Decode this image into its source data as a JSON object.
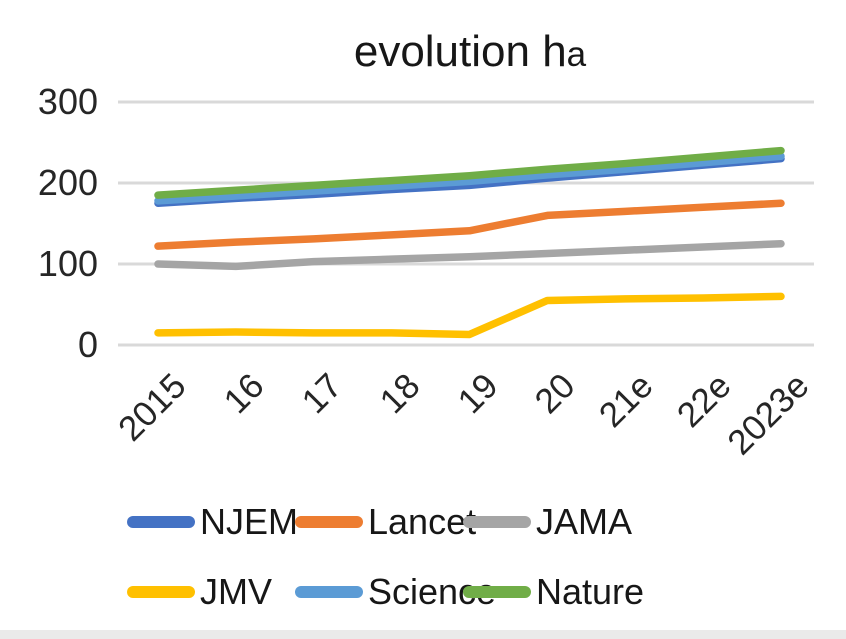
{
  "title": {
    "main": "evolution h",
    "suffix": "a",
    "full": "evolution ha"
  },
  "chart_data": {
    "type": "line",
    "title": "evolution ha",
    "categories": [
      "2015",
      "16",
      "17",
      "18",
      "19",
      "20",
      "21e",
      "22e",
      "2023e"
    ],
    "yticks": [
      "0",
      "100",
      "200",
      "300"
    ],
    "ytick_values": [
      0,
      100,
      200,
      300
    ],
    "ylim": [
      0,
      300
    ],
    "grid": true,
    "gridline_color": "#D9D9D9",
    "legend_position": "bottom",
    "legend_rows": 2,
    "series": [
      {
        "name": "NJEM",
        "color": "#4472C4",
        "values": [
          175,
          181,
          186,
          192,
          197,
          206,
          214,
          222,
          230
        ]
      },
      {
        "name": "Lancet",
        "color": "#ED7D31",
        "values": [
          122,
          127,
          131,
          136,
          141,
          160,
          165,
          170,
          175
        ]
      },
      {
        "name": "JAMA",
        "color": "#A5A5A5",
        "values": [
          100,
          97,
          103,
          106,
          109,
          113,
          117,
          121,
          125
        ]
      },
      {
        "name": "JMV",
        "color": "#FFC000",
        "values": [
          15,
          16,
          15,
          15,
          13,
          55,
          57,
          58,
          60
        ]
      },
      {
        "name": "Science",
        "color": "#5B9BD5",
        "values": [
          178,
          184,
          190,
          196,
          202,
          210,
          217,
          225,
          233
        ]
      },
      {
        "name": "Nature",
        "color": "#70AD47",
        "values": [
          185,
          191,
          197,
          203,
          209,
          217,
          224,
          232,
          240
        ]
      }
    ]
  }
}
